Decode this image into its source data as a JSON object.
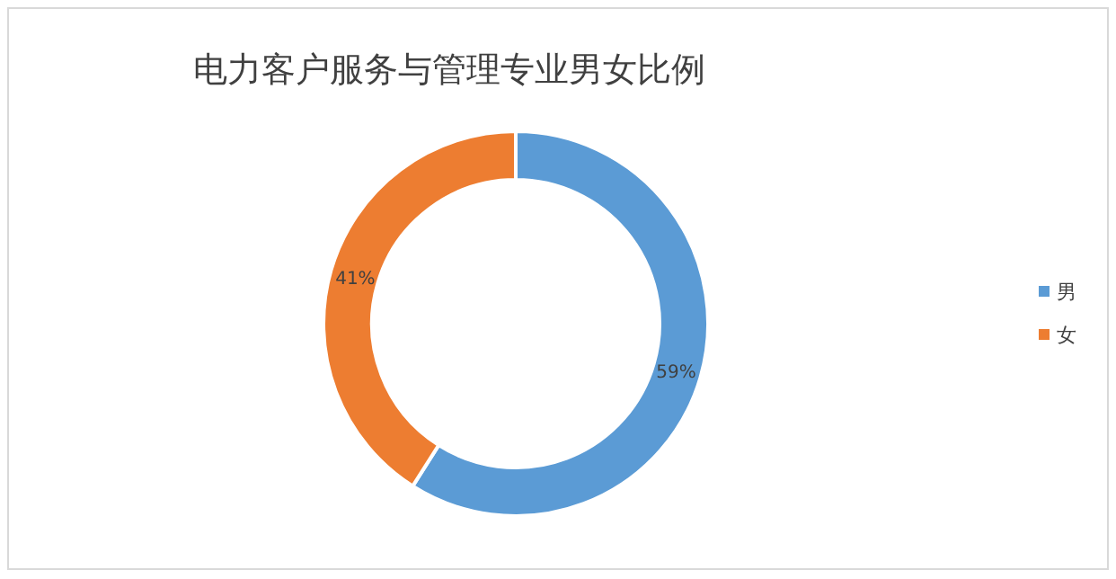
{
  "chart_data": {
    "type": "donut",
    "title": "电力客户服务与管理专业男女比例",
    "categories": [
      "男",
      "女"
    ],
    "values": [
      59,
      41
    ],
    "colors": [
      "#5b9bd5",
      "#ed7d31"
    ],
    "value_labels": [
      "59%",
      "41%"
    ],
    "legend": "right"
  }
}
